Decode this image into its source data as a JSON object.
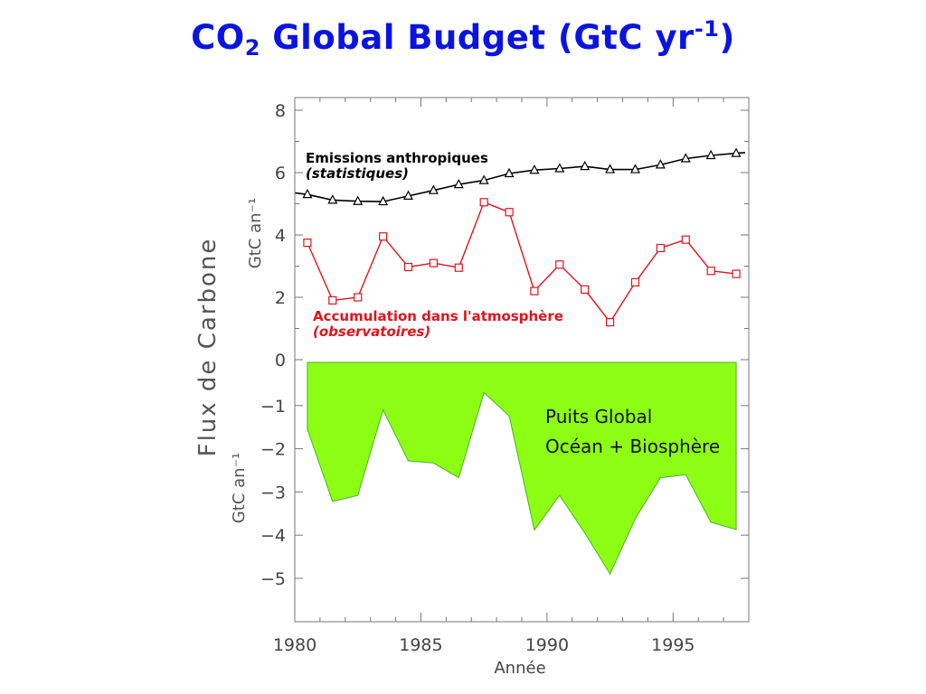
{
  "slide": {
    "title_prefix": "CO",
    "title_sub": "2",
    "title_main": " Global Budget (GtC yr",
    "title_sup": "-1",
    "title_suffix": ")",
    "title_color": "#0a14e0"
  },
  "chart_data": {
    "type": "line",
    "xlabel": "Année",
    "ylabel": "Flux de Carbone",
    "upper_unit_label": "GtC an⁻¹",
    "lower_unit_label": "GtC an⁻¹",
    "xlim": [
      1980,
      1998
    ],
    "ylim": [
      -6,
      8
    ],
    "x_ticks": [
      1980,
      1985,
      1990,
      1995
    ],
    "y_ticks": [
      8,
      6,
      4,
      2,
      0,
      -1,
      -2,
      -3,
      -4,
      -5
    ],
    "x_tick_labels": [
      "1980",
      "1985",
      "1990",
      "1995"
    ],
    "y_tick_labels": [
      "8",
      "6",
      "4",
      "2",
      "0",
      "−1",
      "−2",
      "−3",
      "−4",
      "−5"
    ],
    "grid": false,
    "x": [
      1980.5,
      1981.5,
      1982.5,
      1983.5,
      1984.5,
      1985.5,
      1986.5,
      1987.5,
      1988.5,
      1989.5,
      1990.5,
      1991.5,
      1992.5,
      1993.5,
      1994.5,
      1995.5,
      1996.5,
      1997.5
    ],
    "series": [
      {
        "name": "Emissions anthropiques",
        "name_line2": "(statistiques)",
        "color": "#000000",
        "marker": "triangle",
        "start": [
          1980,
          5.35
        ],
        "values": [
          5.3,
          5.12,
          5.08,
          5.07,
          5.25,
          5.43,
          5.62,
          5.75,
          5.97,
          6.08,
          6.13,
          6.2,
          6.1,
          6.1,
          6.25,
          6.45,
          6.55,
          6.62
        ]
      },
      {
        "name": "Accumulation dans l'atmosphère",
        "name_line2": "(observatoires)",
        "color": "#e0141e",
        "marker": "square",
        "values": [
          3.75,
          1.9,
          2.0,
          3.95,
          2.97,
          3.1,
          2.95,
          5.05,
          4.73,
          2.2,
          3.05,
          2.25,
          1.2,
          2.48,
          3.58,
          3.85,
          2.85,
          2.75
        ]
      },
      {
        "name": "Puits Global",
        "name_line2": "Océan + Biosphère",
        "color": "#8cff14",
        "edge_color": "#4caf2a",
        "type": "area",
        "values": [
          -1.55,
          -3.22,
          -3.08,
          -1.1,
          -2.28,
          -2.33,
          -2.67,
          -0.7,
          -1.24,
          -3.88,
          -3.08,
          -3.95,
          -4.9,
          -3.62,
          -2.67,
          -2.6,
          -3.7,
          -3.87
        ]
      }
    ]
  }
}
